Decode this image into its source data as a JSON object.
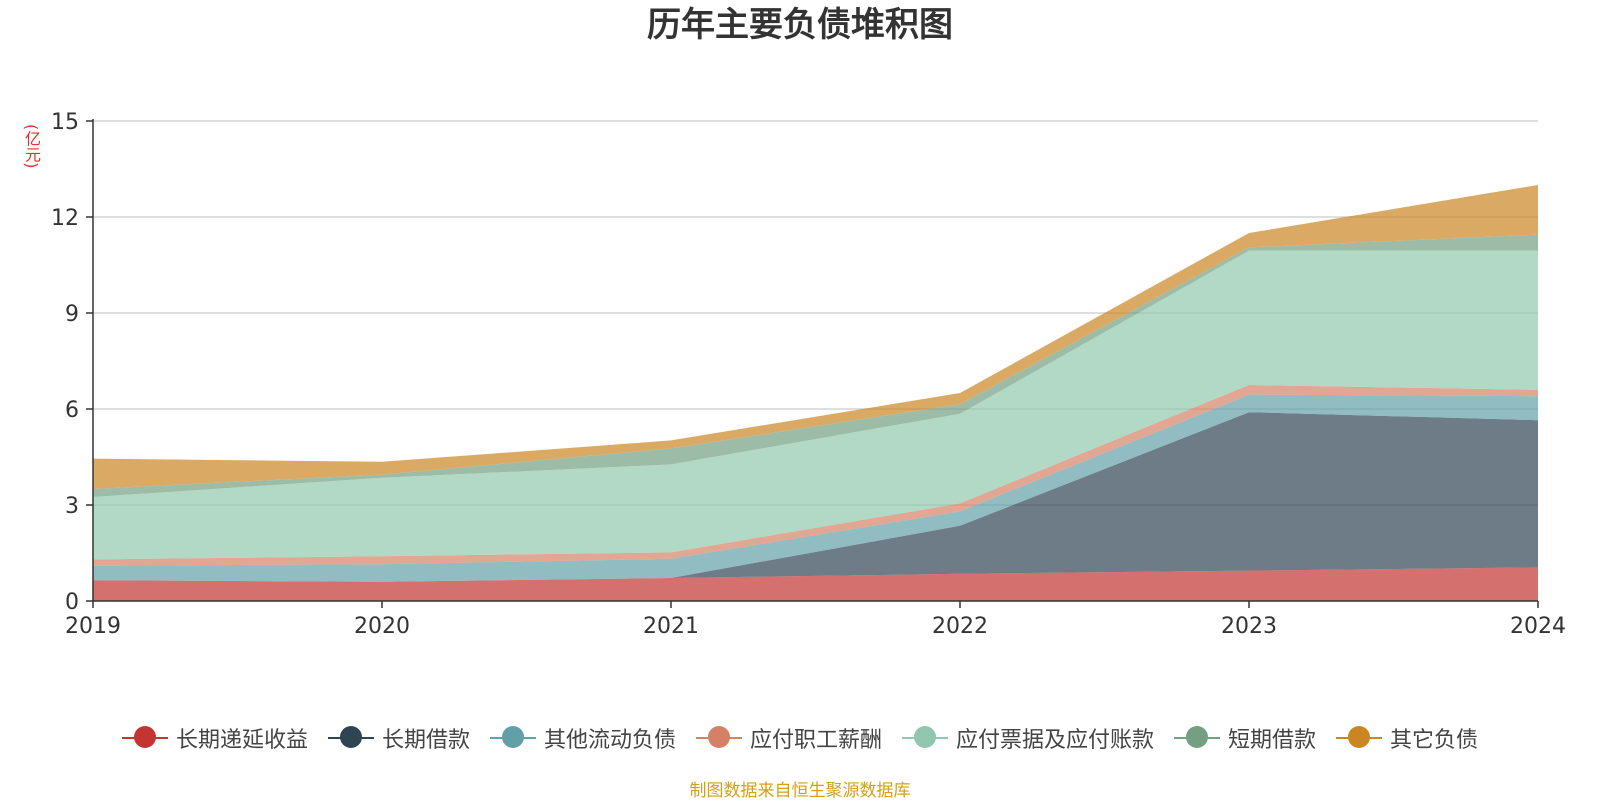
{
  "chart_data": {
    "type": "area",
    "stacked": true,
    "title": "历年主要负债堆积图",
    "ylabel": "(亿元)",
    "xlabel": "",
    "categories": [
      "2019",
      "2020",
      "2021",
      "2022",
      "2023",
      "2024"
    ],
    "ylim": [
      0,
      15
    ],
    "yticks": [
      0,
      3,
      6,
      9,
      12,
      15
    ],
    "grid": true,
    "legend_position": "bottom",
    "series": [
      {
        "name": "长期递延收益",
        "color": "#c23531",
        "values": [
          0.65,
          0.6,
          0.72,
          0.85,
          0.95,
          1.05
        ]
      },
      {
        "name": "长期借款",
        "color": "#2f4554",
        "values": [
          0.0,
          0.0,
          0.0,
          1.5,
          4.95,
          4.6
        ]
      },
      {
        "name": "其他流动负债",
        "color": "#61a0a8",
        "values": [
          0.45,
          0.55,
          0.6,
          0.45,
          0.55,
          0.75
        ]
      },
      {
        "name": "应付职工薪酬",
        "color": "#d48265",
        "values": [
          0.2,
          0.25,
          0.2,
          0.25,
          0.3,
          0.2
        ]
      },
      {
        "name": "应付票据及应付账款",
        "color": "#91c7ae",
        "values": [
          1.95,
          2.45,
          2.75,
          2.8,
          4.2,
          4.35
        ]
      },
      {
        "name": "短期借款",
        "color": "#749f83",
        "values": [
          0.25,
          0.1,
          0.5,
          0.3,
          0.1,
          0.5
        ]
      },
      {
        "name": "其它负债",
        "color": "#ca8622",
        "values": [
          0.95,
          0.4,
          0.25,
          0.35,
          0.45,
          1.55
        ]
      }
    ]
  },
  "source_note": "制图数据来自恒生聚源数据库"
}
